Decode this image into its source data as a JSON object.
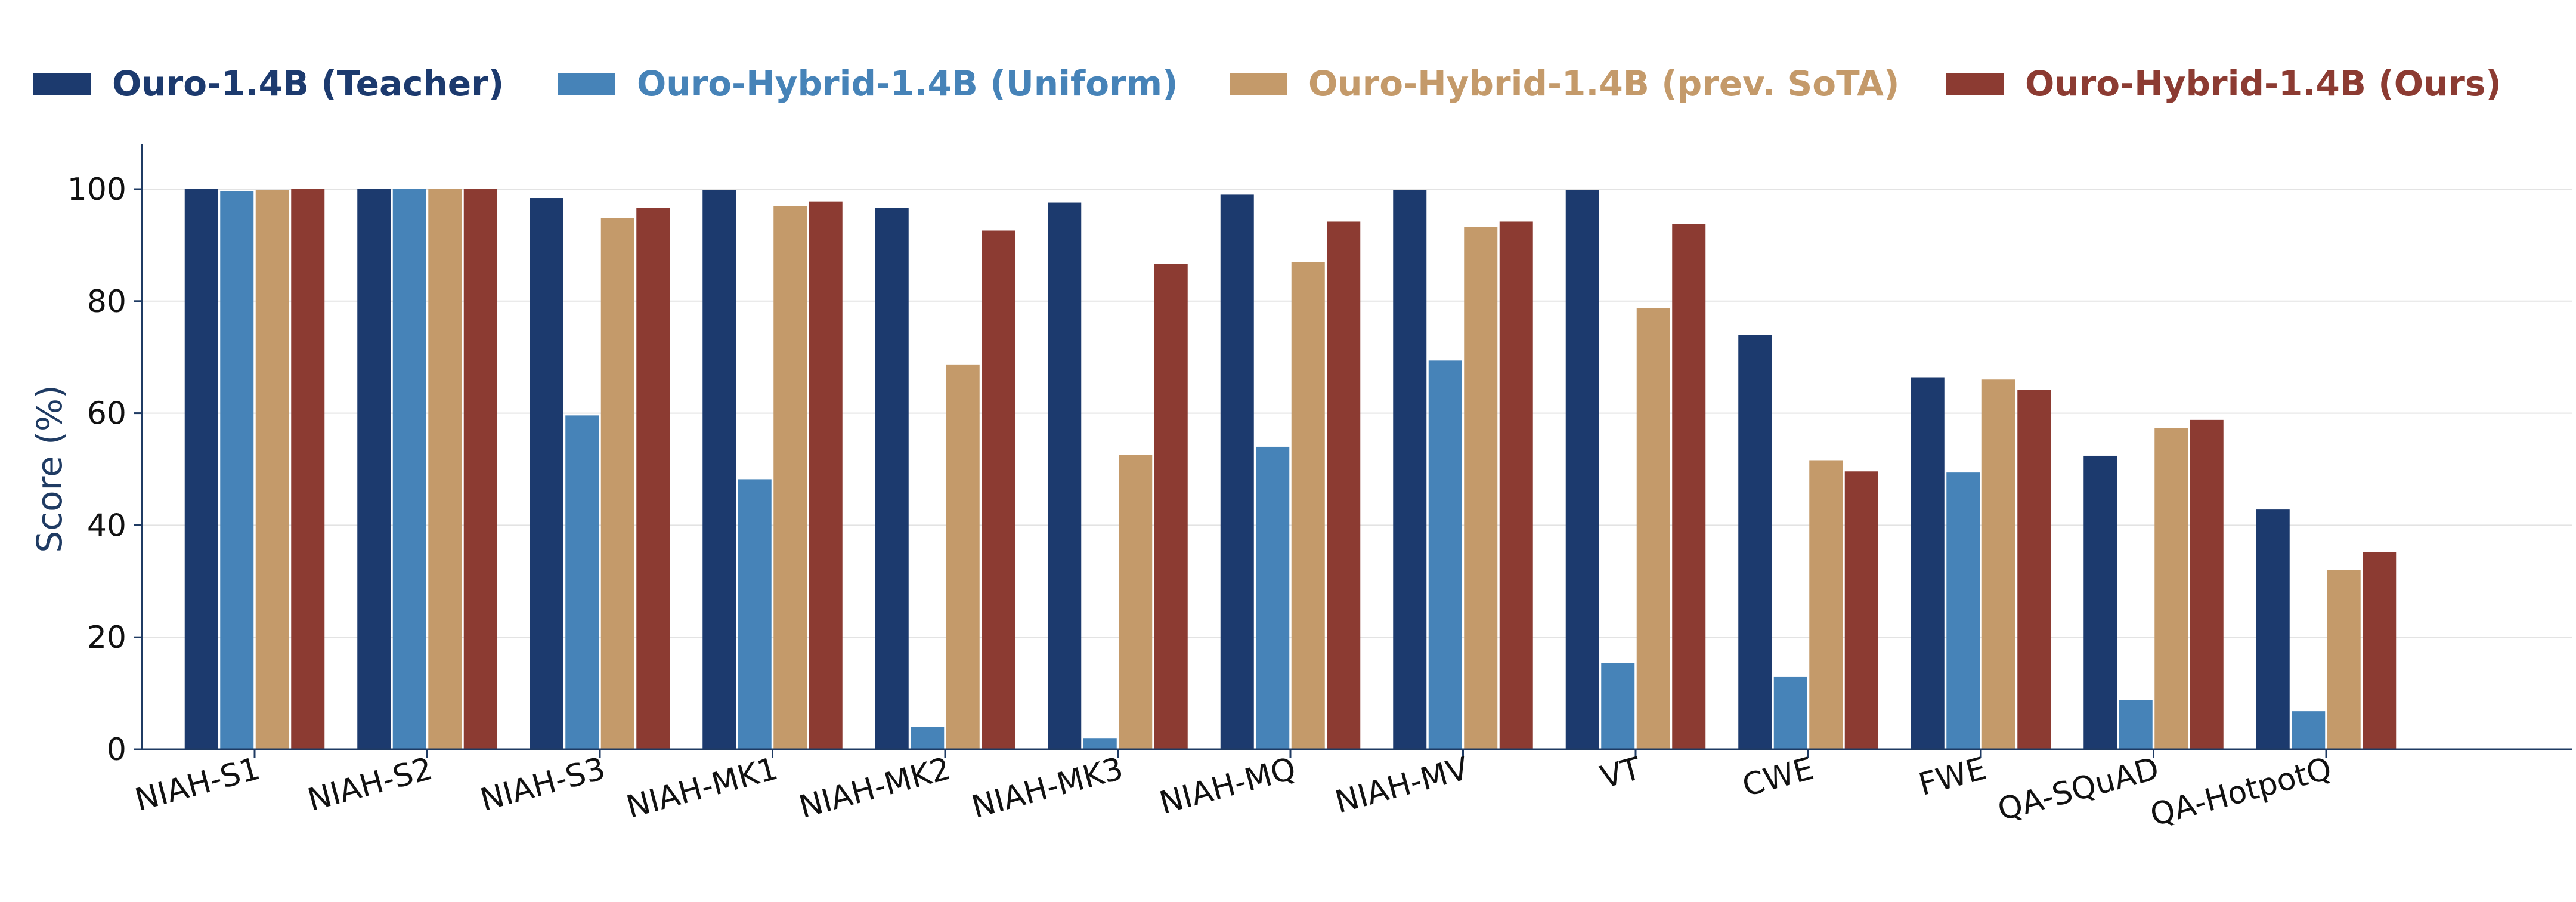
{
  "chart_data": {
    "type": "bar",
    "title": "",
    "xlabel": "",
    "ylabel": "Score (%)",
    "ylim": [
      0,
      108
    ],
    "yticks": [
      0,
      20,
      40,
      60,
      80,
      100
    ],
    "grid": "horizontal",
    "legend_position": "top",
    "categories": [
      "NIAH-S1",
      "NIAH-S2",
      "NIAH-S3",
      "NIAH-MK1",
      "NIAH-MK2",
      "NIAH-MK3",
      "NIAH-MQ",
      "NIAH-MV",
      "VT",
      "CWE",
      "FWE",
      "QA-SQuAD",
      "QA-HotpotQ"
    ],
    "series": [
      {
        "name": "Ouro-1.4B (Teacher)",
        "color": "#1c3a6e",
        "values": [
          100,
          100,
          98.4,
          99.8,
          96.6,
          97.6,
          99.0,
          99.8,
          99.8,
          74.0,
          66.4,
          52.4,
          42.8
        ]
      },
      {
        "name": "Ouro-Hybrid-1.4B (Uniform)",
        "color": "#4683b8",
        "values": [
          99.6,
          100,
          59.6,
          48.2,
          4.0,
          2.0,
          54.0,
          69.4,
          15.4,
          13.0,
          49.4,
          8.8,
          6.8
        ]
      },
      {
        "name": "Ouro-Hybrid-1.4B (prev. SoTA)",
        "color": "#c49a6a",
        "values": [
          99.8,
          100,
          94.8,
          97.0,
          68.6,
          52.6,
          87.0,
          93.2,
          78.8,
          51.6,
          66.0,
          57.4,
          32.0
        ]
      },
      {
        "name": "Ouro-Hybrid-1.4B (Ours)",
        "color": "#8c3b32",
        "values": [
          100,
          100,
          96.6,
          97.8,
          92.6,
          86.6,
          94.2,
          94.2,
          93.8,
          49.6,
          64.2,
          58.8,
          35.2
        ]
      }
    ]
  }
}
